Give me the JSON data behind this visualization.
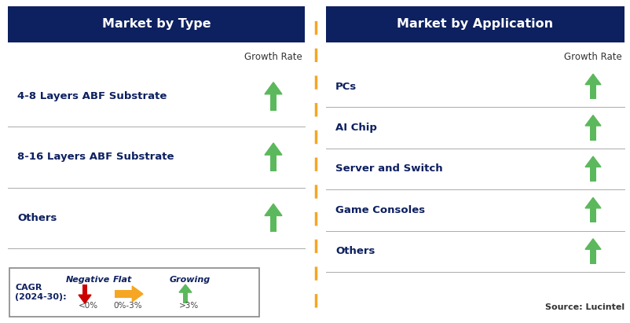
{
  "left_title": "Market by Type",
  "right_title": "Market by Application",
  "left_items": [
    "4-8 Layers ABF Substrate",
    "8-16 Layers ABF Substrate",
    "Others"
  ],
  "right_items": [
    "PCs",
    "AI Chip",
    "Server and Switch",
    "Game Consoles",
    "Others"
  ],
  "growth_rate_label": "Growth Rate",
  "header_bg_color": "#0d2060",
  "header_text_color": "#ffffff",
  "item_text_color": "#0d2060",
  "arrow_up_color": "#5cb85c",
  "arrow_down_color": "#cc0000",
  "arrow_flat_color": "#f5a623",
  "divider_color": "#f5a623",
  "legend_border_color": "#888888",
  "source_text": "Source: Lucintel",
  "cagr_label": "CAGR\n(2024-30):",
  "legend_negative_label": "Negative",
  "legend_negative_sublabel": "<0%",
  "legend_flat_label": "Flat",
  "legend_flat_sublabel": "0%-3%",
  "legend_growing_label": "Growing",
  "legend_growing_sublabel": ">3%",
  "bg_color": "#ffffff",
  "separator_color": "#aaaaaa",
  "growth_rate_color": "#333333"
}
